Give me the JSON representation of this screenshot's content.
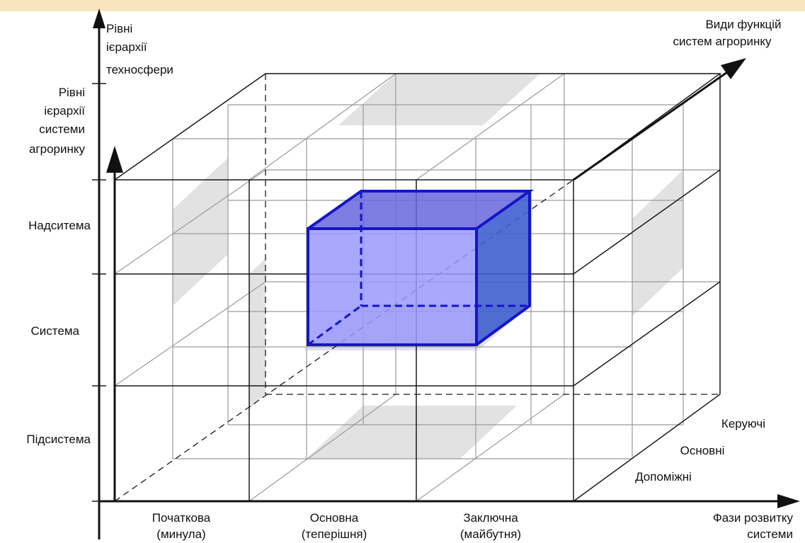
{
  "y_axis": {
    "title_lines": [
      "Рівні",
      "ієрархії",
      "техносфери"
    ],
    "sublevel_title_lines": [
      "Рівні",
      "ієрархії",
      "системи",
      "агроринку"
    ],
    "levels": [
      "Надситема",
      "Система",
      "Підсистема"
    ]
  },
  "x_axis": {
    "title_lines": [
      "Фази розвитку",
      "системи"
    ],
    "phases": [
      {
        "name": "Початкова",
        "sub": "(минула)"
      },
      {
        "name": "Основна",
        "sub": "(теперішня)"
      },
      {
        "name": "Заключна",
        "sub": "(майбутня)"
      }
    ]
  },
  "z_axis": {
    "title_lines": [
      "Види функцій",
      "систем агроринку"
    ],
    "functions": [
      "Керуючі",
      "Основні",
      "Допоміжні"
    ]
  },
  "colors": {
    "highlight_fill_front": "#9999ff",
    "highlight_fill_top": "#6666dd",
    "highlight_fill_side": "#3f5fd0",
    "highlight_edge": "#1515c8",
    "shade": "#e2e2e2"
  }
}
